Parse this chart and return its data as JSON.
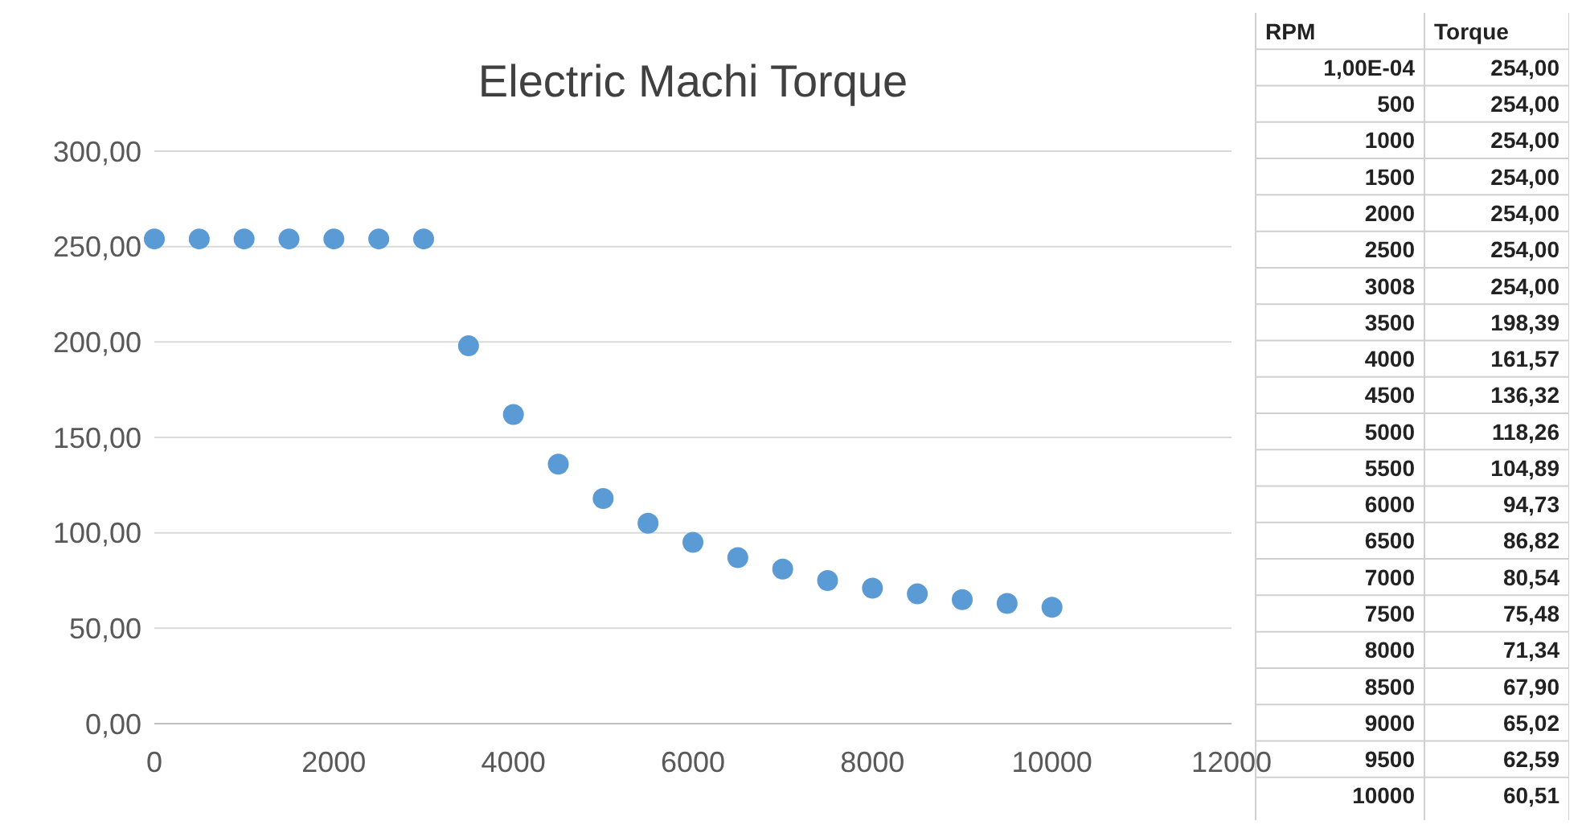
{
  "chart_data": [
    {
      "type": "scatter",
      "title": "Electric Machi Torque",
      "x": [
        0,
        500,
        1000,
        1500,
        2000,
        2500,
        3000,
        3500,
        4000,
        4500,
        5000,
        5500,
        6000,
        6500,
        7000,
        7500,
        8000,
        8500,
        9000,
        9500,
        10000
      ],
      "values": [
        254,
        254,
        254,
        254,
        254,
        254,
        254,
        198,
        162,
        136,
        118,
        105,
        95,
        87,
        81,
        75,
        71,
        68,
        65,
        63,
        61
      ],
      "color": "#5b9bd5",
      "marker": "circle",
      "xlim": [
        0,
        12000
      ],
      "xticks": [
        0,
        2000,
        4000,
        6000,
        8000,
        10000,
        12000
      ],
      "ylim": [
        0,
        300
      ],
      "yticks": [
        {
          "value": 0,
          "label": "0,00"
        },
        {
          "value": 50,
          "label": "50,00"
        },
        {
          "value": 100,
          "label": "100,00"
        },
        {
          "value": 150,
          "label": "150,00"
        },
        {
          "value": 200,
          "label": "200,00"
        },
        {
          "value": 250,
          "label": "250,00"
        },
        {
          "value": 300,
          "label": "300,00"
        }
      ],
      "grid": "y"
    },
    {
      "type": "other",
      "annotations": [
        "RPM",
        "Torque",
        "1,00E-04",
        "254,00",
        "500",
        "254,00",
        "1000",
        "254,00",
        "1500",
        "254,00",
        "2000",
        "254,00",
        "2500",
        "254,00",
        "3008",
        "254,00",
        "3500",
        "198,39",
        "4000",
        "161,57",
        "4500",
        "136,32",
        "5000",
        "118,26",
        "5500",
        "104,89",
        "6000",
        "94,73",
        "6500",
        "86,82",
        "7000",
        "80,54",
        "7500",
        "75,48",
        "8000",
        "71,34",
        "8500",
        "67,90",
        "9000",
        "65,02",
        "9500",
        "62,59",
        "10000",
        "60,51"
      ]
    }
  ]
}
